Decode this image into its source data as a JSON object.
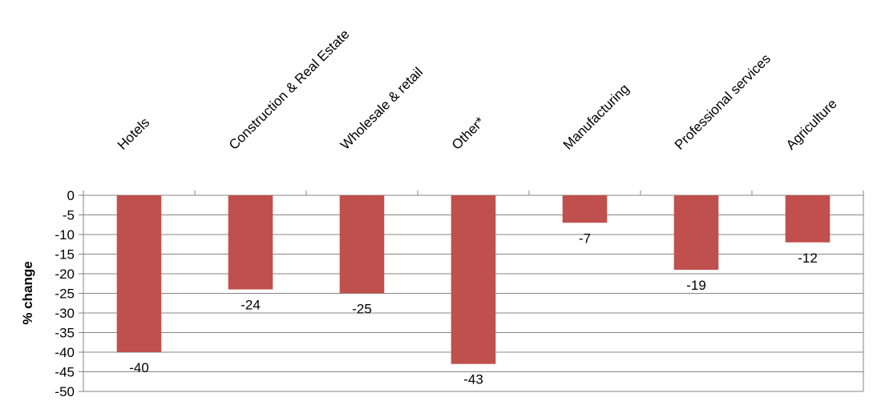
{
  "chart_data": {
    "type": "bar",
    "categories": [
      "Hotels",
      "Construction & Real Estate",
      "Wholesale & retail",
      "Other*",
      "Manufacturing",
      "Professional services",
      "Agriculture"
    ],
    "values": [
      -40,
      -24,
      -25,
      -43,
      -7,
      -19,
      -12
    ],
    "data_labels": [
      "-40",
      "-24",
      "-25",
      "-43",
      "-7",
      "-19",
      "-12"
    ],
    "ylabel": "% change",
    "ylim": [
      -50,
      0
    ],
    "yticks": [
      0,
      -5,
      -10,
      -15,
      -20,
      -25,
      -30,
      -35,
      -40,
      -45,
      -50
    ],
    "grid": true,
    "bar_color": "#C0504D",
    "grid_color": "#868686"
  }
}
